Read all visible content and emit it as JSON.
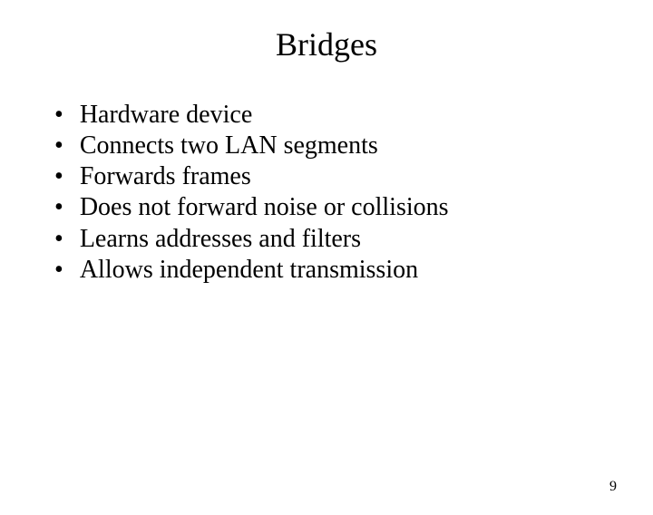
{
  "slide": {
    "title": "Bridges",
    "bullets": [
      "Hardware device",
      "Connects two LAN segments",
      "Forwards frames",
      "Does not forward noise or collisions",
      "Learns addresses and filters",
      "Allows independent transmission"
    ],
    "page_number": "9"
  },
  "styling": {
    "background_color": "#ffffff",
    "text_color": "#000000",
    "title_fontsize": 36,
    "bullet_fontsize": 28,
    "page_number_fontsize": 16,
    "font_family": "Times New Roman"
  }
}
